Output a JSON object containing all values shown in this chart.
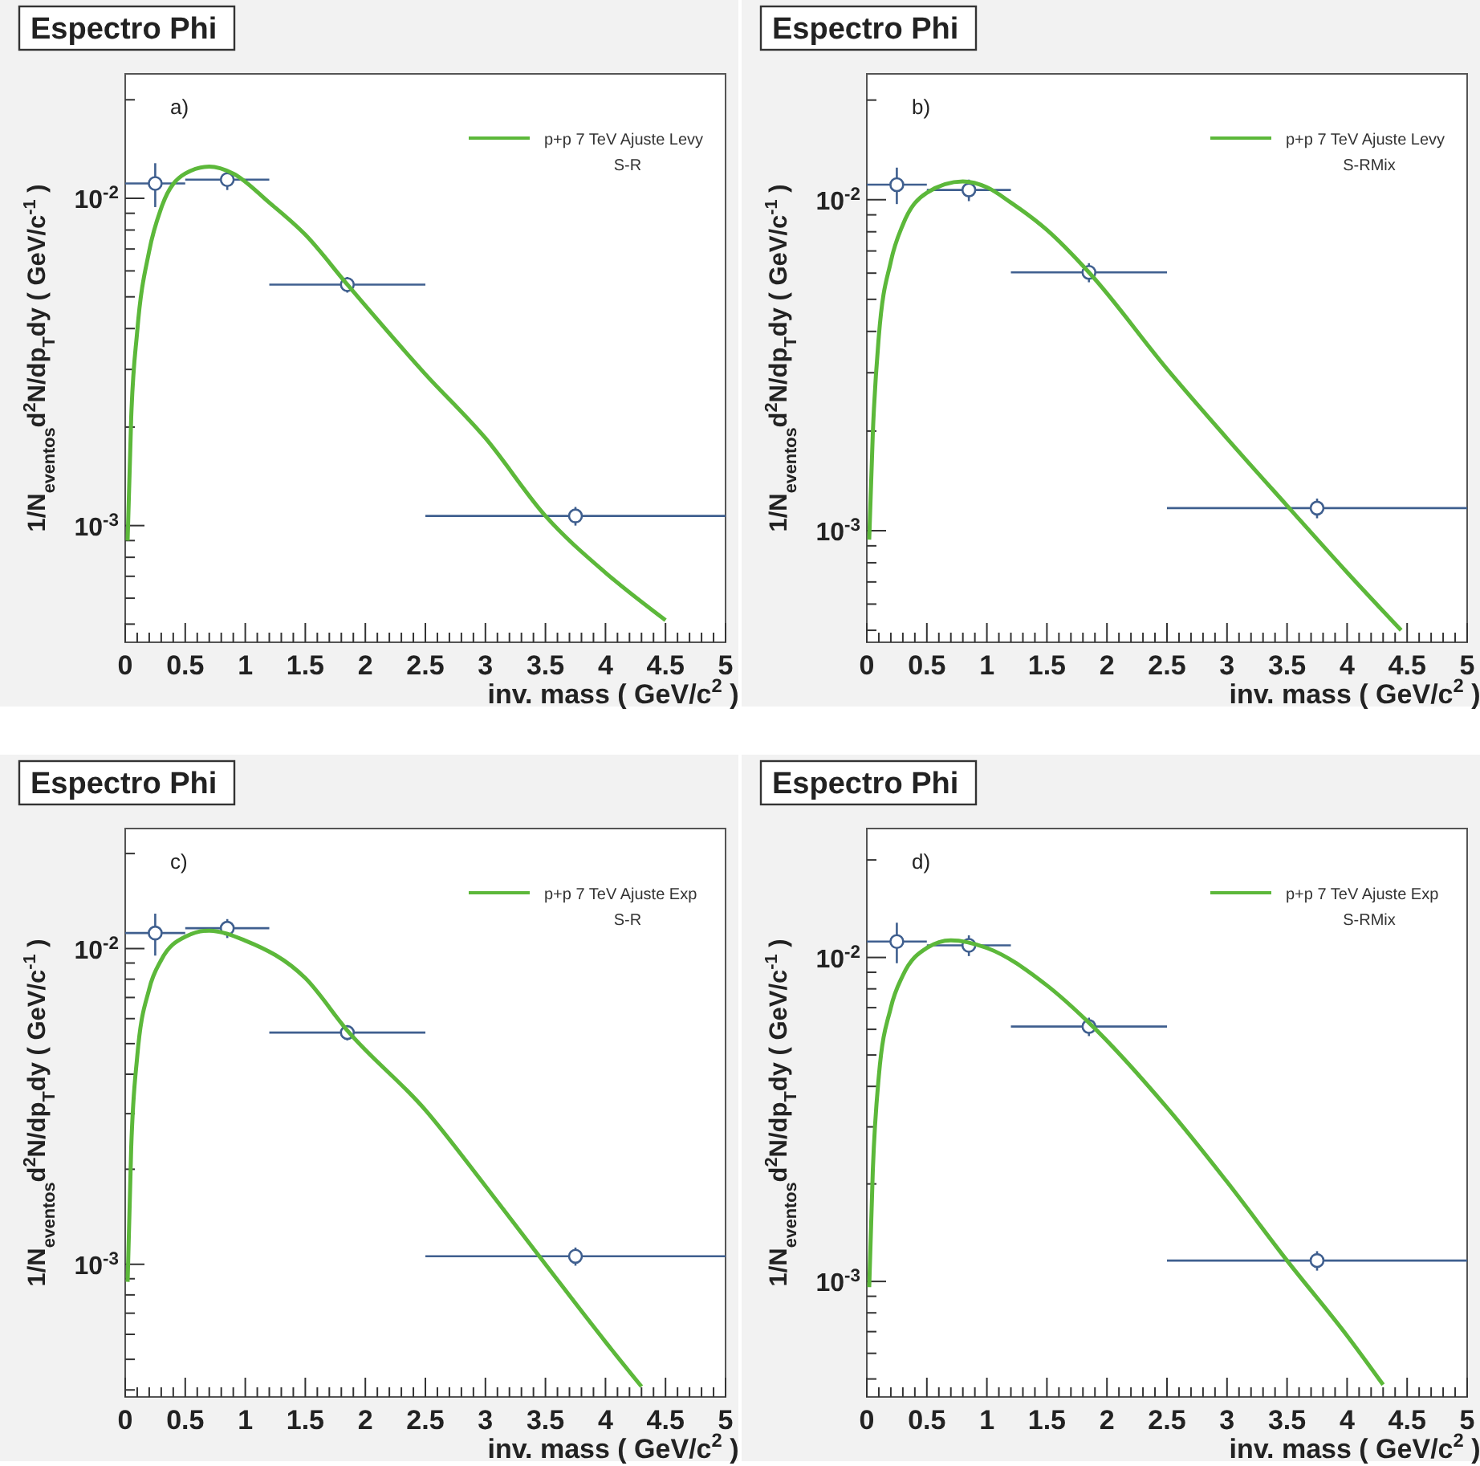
{
  "chart_data": [
    {
      "type": "line",
      "title": "Espectro Phi",
      "xlabel": "inv. mass ( GeV/c$^{2}$ )",
      "ylabel": "1/N$_{eventos}$d$^{2}$N/dp$_{T}$dy ( GeV/c$^{-1}$ )",
      "annotations": [
        "a)"
      ],
      "legend_title": "S-R",
      "legend": "top right",
      "log": "y",
      "xlim": [
        0,
        5
      ],
      "ylim": [
        0.00044,
        0.024
      ],
      "xticks": [
        0,
        {
          "value": 0.1,
          "label": null
        },
        {
          "value": 0.2,
          "label": null
        },
        {
          "value": 0.3,
          "label": null
        },
        {
          "value": 0.4,
          "label": null
        },
        0.5,
        {
          "value": 0.6,
          "label": null
        },
        {
          "value": 0.7,
          "label": null
        },
        {
          "value": 0.8,
          "label": null
        },
        {
          "value": 0.9,
          "label": null
        },
        1,
        {
          "value": 1.1,
          "label": null
        },
        {
          "value": 1.2,
          "label": null
        },
        {
          "value": 1.3,
          "label": null
        },
        {
          "value": 1.4,
          "label": null
        },
        1.5,
        {
          "value": 1.6,
          "label": null
        },
        {
          "value": 1.7,
          "label": null
        },
        {
          "value": 1.8,
          "label": null
        },
        {
          "value": 1.9,
          "label": null
        },
        2,
        {
          "value": 2.1,
          "label": null
        },
        {
          "value": 2.2,
          "label": null
        },
        {
          "value": 2.3,
          "label": null
        },
        {
          "value": 2.4,
          "label": null
        },
        2.5,
        {
          "value": 2.6,
          "label": null
        },
        {
          "value": 2.7,
          "label": null
        },
        {
          "value": 2.8,
          "label": null
        },
        {
          "value": 2.9,
          "label": null
        },
        3,
        {
          "value": 3.1,
          "label": null
        },
        {
          "value": 3.2,
          "label": null
        },
        {
          "value": 3.3,
          "label": null
        },
        {
          "value": 3.4,
          "label": null
        },
        3.5,
        {
          "value": 3.6,
          "label": null
        },
        {
          "value": 3.7,
          "label": null
        },
        {
          "value": 3.8,
          "label": null
        },
        {
          "value": 3.9,
          "label": null
        },
        4,
        {
          "value": 4.1,
          "label": null
        },
        {
          "value": 4.2,
          "label": null
        },
        {
          "value": 4.3,
          "label": null
        },
        {
          "value": 4.4,
          "label": null
        },
        4.5,
        {
          "value": 4.6,
          "label": null
        },
        {
          "value": 4.7,
          "label": null
        },
        {
          "value": 4.8,
          "label": null
        },
        {
          "value": 4.9,
          "label": null
        },
        5
      ],
      "yticks": [
        {
          "value": 0.0005,
          "label": null
        },
        {
          "value": 0.0006,
          "label": null
        },
        {
          "value": 0.0007,
          "label": null
        },
        {
          "value": 0.0008,
          "label": null
        },
        {
          "value": 0.0009,
          "label": null
        },
        {
          "value": 0.001,
          "label": "10$^{-3}$"
        },
        {
          "value": 0.002,
          "label": null
        },
        {
          "value": 0.003,
          "label": null
        },
        {
          "value": 0.004,
          "label": null
        },
        {
          "value": 0.005,
          "label": null
        },
        {
          "value": 0.006,
          "label": null
        },
        {
          "value": 0.007,
          "label": null
        },
        {
          "value": 0.008,
          "label": null
        },
        {
          "value": 0.009,
          "label": null
        },
        {
          "value": 0.01,
          "label": "10$^{-2}$"
        },
        {
          "value": 0.02,
          "label": null
        }
      ],
      "series": [
        {
          "type": "scatter",
          "marker": "circle",
          "color": "#3f5f8f",
          "x": [
            0.25,
            0.85,
            1.85,
            3.75
          ],
          "values": [
            0.0111,
            0.0114,
            0.00545,
            0.00107
          ],
          "errors": [
            0.0017,
            0.0008,
            0.0003,
            7e-05
          ],
          "xerrors": [
            0.25,
            0.35,
            0.65,
            1.25
          ]
        },
        {
          "type": "line",
          "name": "p+p 7 TeV Ajuste Levy",
          "color": "#5cb83a",
          "x": [
            0.02,
            0.05,
            0.1,
            0.2,
            0.3,
            0.5,
            0.7,
            0.9,
            1.2,
            1.5,
            1.85,
            2.5,
            3,
            3.5,
            4,
            4.5
          ],
          "values": [
            0.0009,
            0.00214,
            0.00392,
            0.00691,
            0.00934,
            0.0119,
            0.0125,
            0.0119,
            0.0097,
            0.00774,
            0.00545,
            0.0029,
            0.00185,
            0.00107,
            0.000718,
            0.000514
          ]
        }
      ]
    },
    {
      "type": "line",
      "title": "Espectro Phi",
      "xlabel": "inv. mass ( GeV/c$^{2}$ )",
      "ylabel": "1/N$_{eventos}$d$^{2}$N/dp$_{T}$dy ( GeV/c$^{-1}$ )",
      "annotations": [
        "b)"
      ],
      "legend_title": "S-RMix",
      "legend": "top right",
      "log": "y",
      "xlim": [
        0,
        5
      ],
      "ylim": [
        0.00046,
        0.024
      ],
      "xticks": [
        0,
        {
          "value": 0.1,
          "label": null
        },
        {
          "value": 0.2,
          "label": null
        },
        {
          "value": 0.3,
          "label": null
        },
        {
          "value": 0.4,
          "label": null
        },
        0.5,
        {
          "value": 0.6,
          "label": null
        },
        {
          "value": 0.7,
          "label": null
        },
        {
          "value": 0.8,
          "label": null
        },
        {
          "value": 0.9,
          "label": null
        },
        1,
        {
          "value": 1.1,
          "label": null
        },
        {
          "value": 1.2,
          "label": null
        },
        {
          "value": 1.3,
          "label": null
        },
        {
          "value": 1.4,
          "label": null
        },
        1.5,
        {
          "value": 1.6,
          "label": null
        },
        {
          "value": 1.7,
          "label": null
        },
        {
          "value": 1.8,
          "label": null
        },
        {
          "value": 1.9,
          "label": null
        },
        2,
        {
          "value": 2.1,
          "label": null
        },
        {
          "value": 2.2,
          "label": null
        },
        {
          "value": 2.3,
          "label": null
        },
        {
          "value": 2.4,
          "label": null
        },
        2.5,
        {
          "value": 2.6,
          "label": null
        },
        {
          "value": 2.7,
          "label": null
        },
        {
          "value": 2.8,
          "label": null
        },
        {
          "value": 2.9,
          "label": null
        },
        3,
        {
          "value": 3.1,
          "label": null
        },
        {
          "value": 3.2,
          "label": null
        },
        {
          "value": 3.3,
          "label": null
        },
        {
          "value": 3.4,
          "label": null
        },
        3.5,
        {
          "value": 3.6,
          "label": null
        },
        {
          "value": 3.7,
          "label": null
        },
        {
          "value": 3.8,
          "label": null
        },
        {
          "value": 3.9,
          "label": null
        },
        4,
        {
          "value": 4.1,
          "label": null
        },
        {
          "value": 4.2,
          "label": null
        },
        {
          "value": 4.3,
          "label": null
        },
        {
          "value": 4.4,
          "label": null
        },
        4.5,
        {
          "value": 4.6,
          "label": null
        },
        {
          "value": 4.7,
          "label": null
        },
        {
          "value": 4.8,
          "label": null
        },
        {
          "value": 4.9,
          "label": null
        },
        5
      ],
      "yticks": [
        {
          "value": 0.0005,
          "label": null
        },
        {
          "value": 0.0006,
          "label": null
        },
        {
          "value": 0.0007,
          "label": null
        },
        {
          "value": 0.0008,
          "label": null
        },
        {
          "value": 0.0009,
          "label": null
        },
        {
          "value": 0.001,
          "label": "10$^{-3}$"
        },
        {
          "value": 0.002,
          "label": null
        },
        {
          "value": 0.003,
          "label": null
        },
        {
          "value": 0.004,
          "label": null
        },
        {
          "value": 0.005,
          "label": null
        },
        {
          "value": 0.006,
          "label": null
        },
        {
          "value": 0.007,
          "label": null
        },
        {
          "value": 0.008,
          "label": null
        },
        {
          "value": 0.009,
          "label": null
        },
        {
          "value": 0.01,
          "label": "10$^{-2}$"
        },
        {
          "value": 0.02,
          "label": null
        }
      ],
      "series": [
        {
          "type": "scatter",
          "marker": "circle",
          "color": "#3f5f8f",
          "x": [
            0.25,
            0.85,
            1.85,
            3.75
          ],
          "values": [
            0.0111,
            0.0107,
            0.00603,
            0.00117
          ],
          "errors": [
            0.0014,
            0.0008,
            0.0004,
            8e-05
          ],
          "xerrors": [
            0.25,
            0.35,
            0.65,
            1.25
          ]
        },
        {
          "type": "line",
          "name": "p+p 7 TeV Ajuste Levy",
          "color": "#5cb83a",
          "x": [
            0.02,
            0.05,
            0.1,
            0.2,
            0.3,
            0.5,
            0.8,
            1,
            1.2,
            1.5,
            1.85,
            2.5,
            3,
            3.5,
            4,
            4.45
          ],
          "values": [
            0.00094,
            0.00197,
            0.00386,
            0.0065,
            0.0084,
            0.0105,
            0.01135,
            0.0109,
            0.0098,
            0.0081,
            0.00603,
            0.00308,
            0.0019,
            0.00119,
            0.000748,
            0.0005
          ]
        }
      ]
    },
    {
      "type": "line",
      "title": "Espectro Phi",
      "xlabel": "inv. mass ( GeV/c$^{2}$ )",
      "ylabel": "1/N$_{eventos}$d$^{2}$N/dp$_{T}$dy ( GeV/c$^{-1}$ )",
      "annotations": [
        "c)"
      ],
      "legend_title": "S-R",
      "legend": "top right",
      "log": "y",
      "xlim": [
        0,
        5
      ],
      "ylim": [
        0.00038,
        0.024
      ],
      "xticks": [
        0,
        {
          "value": 0.1,
          "label": null
        },
        {
          "value": 0.2,
          "label": null
        },
        {
          "value": 0.3,
          "label": null
        },
        {
          "value": 0.4,
          "label": null
        },
        0.5,
        {
          "value": 0.6,
          "label": null
        },
        {
          "value": 0.7,
          "label": null
        },
        {
          "value": 0.8,
          "label": null
        },
        {
          "value": 0.9,
          "label": null
        },
        1,
        {
          "value": 1.1,
          "label": null
        },
        {
          "value": 1.2,
          "label": null
        },
        {
          "value": 1.3,
          "label": null
        },
        {
          "value": 1.4,
          "label": null
        },
        1.5,
        {
          "value": 1.6,
          "label": null
        },
        {
          "value": 1.7,
          "label": null
        },
        {
          "value": 1.8,
          "label": null
        },
        {
          "value": 1.9,
          "label": null
        },
        2,
        {
          "value": 2.1,
          "label": null
        },
        {
          "value": 2.2,
          "label": null
        },
        {
          "value": 2.3,
          "label": null
        },
        {
          "value": 2.4,
          "label": null
        },
        2.5,
        {
          "value": 2.6,
          "label": null
        },
        {
          "value": 2.7,
          "label": null
        },
        {
          "value": 2.8,
          "label": null
        },
        {
          "value": 2.9,
          "label": null
        },
        3,
        {
          "value": 3.1,
          "label": null
        },
        {
          "value": 3.2,
          "label": null
        },
        {
          "value": 3.3,
          "label": null
        },
        {
          "value": 3.4,
          "label": null
        },
        3.5,
        {
          "value": 3.6,
          "label": null
        },
        {
          "value": 3.7,
          "label": null
        },
        {
          "value": 3.8,
          "label": null
        },
        {
          "value": 3.9,
          "label": null
        },
        4,
        {
          "value": 4.1,
          "label": null
        },
        {
          "value": 4.2,
          "label": null
        },
        {
          "value": 4.3,
          "label": null
        },
        {
          "value": 4.4,
          "label": null
        },
        4.5,
        {
          "value": 4.6,
          "label": null
        },
        {
          "value": 4.7,
          "label": null
        },
        {
          "value": 4.8,
          "label": null
        },
        {
          "value": 4.9,
          "label": null
        },
        5
      ],
      "yticks": [
        {
          "value": 0.0004,
          "label": null
        },
        {
          "value": 0.0005,
          "label": null
        },
        {
          "value": 0.0006,
          "label": null
        },
        {
          "value": 0.0007,
          "label": null
        },
        {
          "value": 0.0008,
          "label": null
        },
        {
          "value": 0.0009,
          "label": null
        },
        {
          "value": 0.001,
          "label": "10$^{-3}$"
        },
        {
          "value": 0.002,
          "label": null
        },
        {
          "value": 0.003,
          "label": null
        },
        {
          "value": 0.004,
          "label": null
        },
        {
          "value": 0.005,
          "label": null
        },
        {
          "value": 0.006,
          "label": null
        },
        {
          "value": 0.007,
          "label": null
        },
        {
          "value": 0.008,
          "label": null
        },
        {
          "value": 0.009,
          "label": null
        },
        {
          "value": 0.01,
          "label": "10$^{-2}$"
        },
        {
          "value": 0.02,
          "label": null
        }
      ],
      "series": [
        {
          "type": "scatter",
          "marker": "circle",
          "color": "#3f5f8f",
          "x": [
            0.25,
            0.85,
            1.85,
            3.75
          ],
          "values": [
            0.0112,
            0.0116,
            0.00542,
            0.00106
          ],
          "errors": [
            0.0017,
            0.0008,
            0.0003,
            7e-05
          ],
          "xerrors": [
            0.25,
            0.35,
            0.65,
            1.25
          ]
        },
        {
          "type": "line",
          "name": "p+p 7 TeV Ajuste Exp",
          "color": "#5cb83a",
          "x": [
            0.02,
            0.05,
            0.1,
            0.2,
            0.3,
            0.5,
            0.7,
            1,
            1.5,
            1.85,
            2.5,
            3,
            3.5,
            4,
            4.3
          ],
          "values": [
            0.00088,
            0.00234,
            0.00455,
            0.00745,
            0.0092,
            0.0109,
            0.0114,
            0.0106,
            0.00806,
            0.0055,
            0.00308,
            0.00177,
            0.001,
            0.000568,
            0.00041
          ]
        }
      ]
    },
    {
      "type": "line",
      "title": "Espectro Phi",
      "xlabel": "inv. mass ( GeV/c$^{2}$ )",
      "ylabel": "1/N$_{eventos}$d$^{2}$N/dp$_{T}$dy ( GeV/c$^{-1}$ )",
      "annotations": [
        "d)"
      ],
      "legend_title": "S-RMix",
      "legend": "top right",
      "log": "y",
      "xlim": [
        0,
        5
      ],
      "ylim": [
        0.00044,
        0.025
      ],
      "xticks": [
        0,
        {
          "value": 0.1,
          "label": null
        },
        {
          "value": 0.2,
          "label": null
        },
        {
          "value": 0.3,
          "label": null
        },
        {
          "value": 0.4,
          "label": null
        },
        0.5,
        {
          "value": 0.6,
          "label": null
        },
        {
          "value": 0.7,
          "label": null
        },
        {
          "value": 0.8,
          "label": null
        },
        {
          "value": 0.9,
          "label": null
        },
        1,
        {
          "value": 1.1,
          "label": null
        },
        {
          "value": 1.2,
          "label": null
        },
        {
          "value": 1.3,
          "label": null
        },
        {
          "value": 1.4,
          "label": null
        },
        1.5,
        {
          "value": 1.6,
          "label": null
        },
        {
          "value": 1.7,
          "label": null
        },
        {
          "value": 1.8,
          "label": null
        },
        {
          "value": 1.9,
          "label": null
        },
        2,
        {
          "value": 2.1,
          "label": null
        },
        {
          "value": 2.2,
          "label": null
        },
        {
          "value": 2.3,
          "label": null
        },
        {
          "value": 2.4,
          "label": null
        },
        2.5,
        {
          "value": 2.6,
          "label": null
        },
        {
          "value": 2.7,
          "label": null
        },
        {
          "value": 2.8,
          "label": null
        },
        {
          "value": 2.9,
          "label": null
        },
        3,
        {
          "value": 3.1,
          "label": null
        },
        {
          "value": 3.2,
          "label": null
        },
        {
          "value": 3.3,
          "label": null
        },
        {
          "value": 3.4,
          "label": null
        },
        3.5,
        {
          "value": 3.6,
          "label": null
        },
        {
          "value": 3.7,
          "label": null
        },
        {
          "value": 3.8,
          "label": null
        },
        {
          "value": 3.9,
          "label": null
        },
        4,
        {
          "value": 4.1,
          "label": null
        },
        {
          "value": 4.2,
          "label": null
        },
        {
          "value": 4.3,
          "label": null
        },
        {
          "value": 4.4,
          "label": null
        },
        4.5,
        {
          "value": 4.6,
          "label": null
        },
        {
          "value": 4.7,
          "label": null
        },
        {
          "value": 4.8,
          "label": null
        },
        {
          "value": 4.9,
          "label": null
        },
        5
      ],
      "yticks": [
        {
          "value": 0.0005,
          "label": null
        },
        {
          "value": 0.0006,
          "label": null
        },
        {
          "value": 0.0007,
          "label": null
        },
        {
          "value": 0.0008,
          "label": null
        },
        {
          "value": 0.0009,
          "label": null
        },
        {
          "value": 0.001,
          "label": "10$^{-3}$"
        },
        {
          "value": 0.002,
          "label": null
        },
        {
          "value": 0.003,
          "label": null
        },
        {
          "value": 0.004,
          "label": null
        },
        {
          "value": 0.005,
          "label": null
        },
        {
          "value": 0.006,
          "label": null
        },
        {
          "value": 0.007,
          "label": null
        },
        {
          "value": 0.008,
          "label": null
        },
        {
          "value": 0.009,
          "label": null
        },
        {
          "value": 0.01,
          "label": "10$^{-2}$"
        },
        {
          "value": 0.02,
          "label": null
        }
      ],
      "series": [
        {
          "type": "scatter",
          "marker": "circle",
          "color": "#3f5f8f",
          "x": [
            0.25,
            0.85,
            1.85,
            3.75
          ],
          "values": [
            0.0112,
            0.0109,
            0.00612,
            0.00116
          ],
          "errors": [
            0.0016,
            0.0008,
            0.0004,
            8e-05
          ],
          "xerrors": [
            0.25,
            0.35,
            0.65,
            1.25
          ]
        },
        {
          "type": "line",
          "name": "p+p 7 TeV Ajuste Exp",
          "color": "#5cb83a",
          "x": [
            0.02,
            0.05,
            0.1,
            0.2,
            0.3,
            0.5,
            0.7,
            1,
            1.5,
            1.85,
            2.5,
            3,
            3.5,
            4,
            4.3
          ],
          "values": [
            0.00096,
            0.0022,
            0.0043,
            0.007,
            0.0088,
            0.0107,
            0.0113,
            0.0107,
            0.0082,
            0.00629,
            0.00344,
            0.00203,
            0.00116,
            0.00068,
            0.00048
          ]
        }
      ]
    }
  ]
}
